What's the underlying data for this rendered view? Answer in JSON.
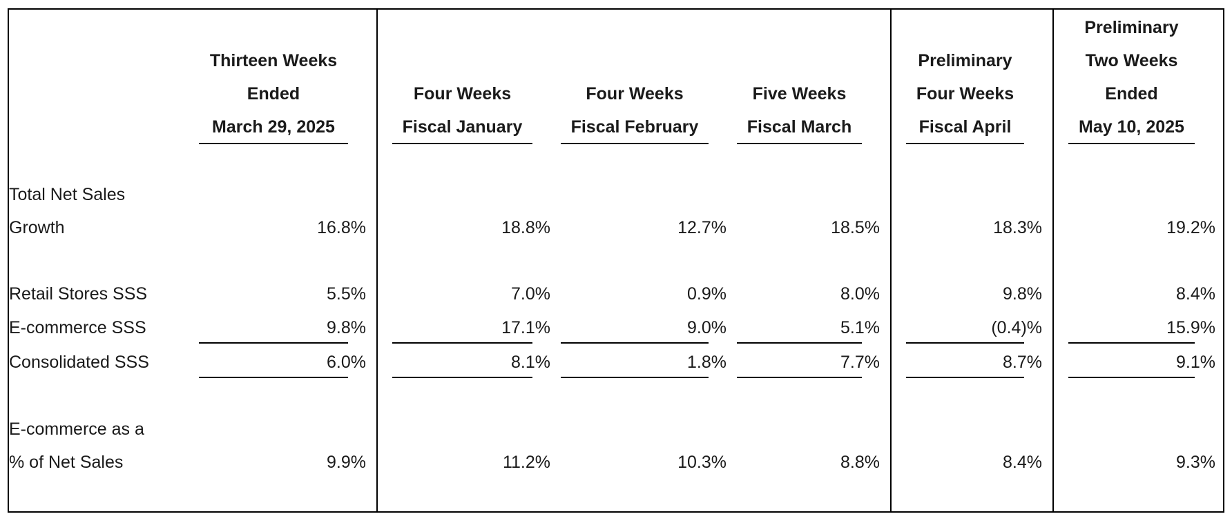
{
  "columns": [
    {
      "header_lines": [
        "Thirteen Weeks",
        "Ended",
        "March 29, 2025"
      ]
    },
    {
      "header_lines": [
        "Four Weeks",
        "Fiscal January"
      ]
    },
    {
      "header_lines": [
        "Four Weeks",
        "Fiscal February"
      ]
    },
    {
      "header_lines": [
        "Five Weeks",
        "Fiscal March"
      ]
    },
    {
      "header_lines": [
        "Preliminary",
        "Four Weeks",
        "Fiscal April"
      ]
    },
    {
      "header_lines": [
        "Preliminary",
        "Two Weeks",
        "Ended",
        "May 10, 2025"
      ]
    }
  ],
  "rows": [
    {
      "label_lines": [
        "Total Net Sales",
        "Growth"
      ],
      "values": [
        "16.8%",
        "18.8%",
        "12.7%",
        "18.5%",
        "18.3%",
        "19.2%"
      ]
    },
    {
      "label_lines": [
        "Retail Stores SSS"
      ],
      "values": [
        "5.5%",
        "7.0%",
        "0.9%",
        "8.0%",
        "9.8%",
        "8.4%"
      ]
    },
    {
      "label_lines": [
        "E-commerce SSS"
      ],
      "values": [
        "9.8%",
        "17.1%",
        "9.0%",
        "5.1%",
        "(0.4)%",
        "15.9%"
      ]
    },
    {
      "label_lines": [
        "Consolidated SSS"
      ],
      "values": [
        "6.0%",
        "8.1%",
        "1.8%",
        "7.7%",
        "8.7%",
        "9.1%"
      ]
    },
    {
      "label_lines": [
        "E-commerce as a",
        "% of Net Sales"
      ],
      "values": [
        "9.9%",
        "11.2%",
        "10.3%",
        "8.8%",
        "8.4%",
        "9.3%"
      ]
    }
  ]
}
